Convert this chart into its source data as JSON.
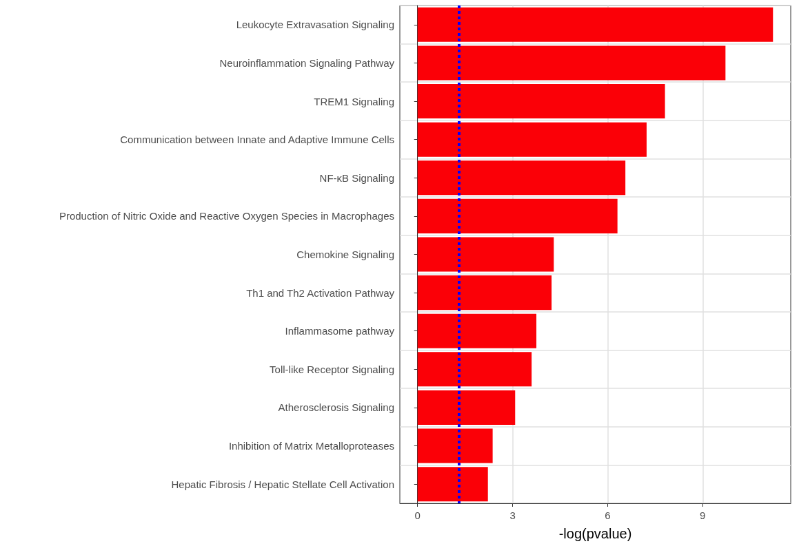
{
  "chart_data": {
    "type": "bar",
    "orientation": "horizontal",
    "xlabel": "-log(pvalue)",
    "categories": [
      "Leukocyte Extravasation Signaling",
      "Neuroinflammation Signaling Pathway",
      "TREM1 Signaling",
      "Communication between Innate and Adaptive Immune Cells",
      "NF-κB Signaling",
      "Production of Nitric Oxide and Reactive Oxygen Species in Macrophages",
      "Chemokine Signaling",
      "Th1 and Th2 Activation Pathway",
      "Inflammasome pathway",
      "Toll-like Receptor Signaling",
      "Atherosclerosis Signaling",
      "Inhibition of Matrix Metalloproteases",
      "Hepatic Fibrosis / Hepatic Stellate Cell Activation"
    ],
    "values": [
      11.22,
      9.72,
      7.81,
      7.23,
      6.56,
      6.31,
      4.3,
      4.23,
      3.75,
      3.6,
      3.08,
      2.37,
      2.22
    ],
    "color": "#fb0007",
    "xlim": [
      -0.56,
      11.78
    ],
    "xticks": [
      0,
      3,
      6,
      9
    ],
    "grid": true,
    "ref_lines": [
      {
        "axis": "x",
        "value": 1.3,
        "color": "#0000ff",
        "line_style": "dotted"
      }
    ]
  }
}
